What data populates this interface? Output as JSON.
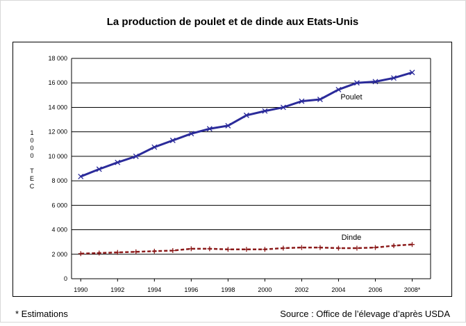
{
  "chart_data": {
    "type": "line",
    "title": "La production de poulet et de dinde aux Etats-Unis",
    "y_label": "1000 TEC",
    "x": [
      1990,
      1991,
      1992,
      1993,
      1994,
      1995,
      1996,
      1997,
      1998,
      1999,
      2000,
      2001,
      2002,
      2003,
      2004,
      2005,
      2006,
      2007,
      2008
    ],
    "series": [
      {
        "name": "Poulet",
        "color": "#2b2b9a",
        "dash": false,
        "marker": "x",
        "values": [
          8350,
          8950,
          9500,
          10000,
          10750,
          11300,
          11850,
          12250,
          12500,
          13350,
          13700,
          14000,
          14500,
          14650,
          15450,
          16000,
          16100,
          16400,
          16850
        ]
      },
      {
        "name": "Dinde",
        "color": "#8b1a1a",
        "dash": true,
        "marker": "+",
        "values": [
          2050,
          2100,
          2150,
          2200,
          2250,
          2300,
          2450,
          2450,
          2400,
          2400,
          2400,
          2500,
          2550,
          2550,
          2500,
          2500,
          2550,
          2700,
          2800
        ]
      }
    ],
    "xlim": [
      1989.5,
      2009
    ],
    "xticks": [
      1990,
      1992,
      1994,
      1996,
      1998,
      2000,
      2002,
      2004,
      2006,
      {
        "value": 2008,
        "label": "2008*"
      }
    ],
    "ylim": [
      0,
      18000
    ],
    "yticks": [
      0,
      {
        "value": 2000,
        "label": "2 000"
      },
      {
        "value": 4000,
        "label": "4 000"
      },
      {
        "value": 6000,
        "label": "6 000"
      },
      {
        "value": 8000,
        "label": "8 000"
      },
      {
        "value": 10000,
        "label": "10 000"
      },
      {
        "value": 12000,
        "label": "12 000"
      },
      {
        "value": 14000,
        "label": "14 000"
      },
      {
        "value": 16000,
        "label": "16 000"
      },
      {
        "value": 18000,
        "label": "18 000"
      }
    ],
    "grid": true,
    "footnote": "* Estimations",
    "source": "Source : Office de l’élevage d’après USDA"
  }
}
